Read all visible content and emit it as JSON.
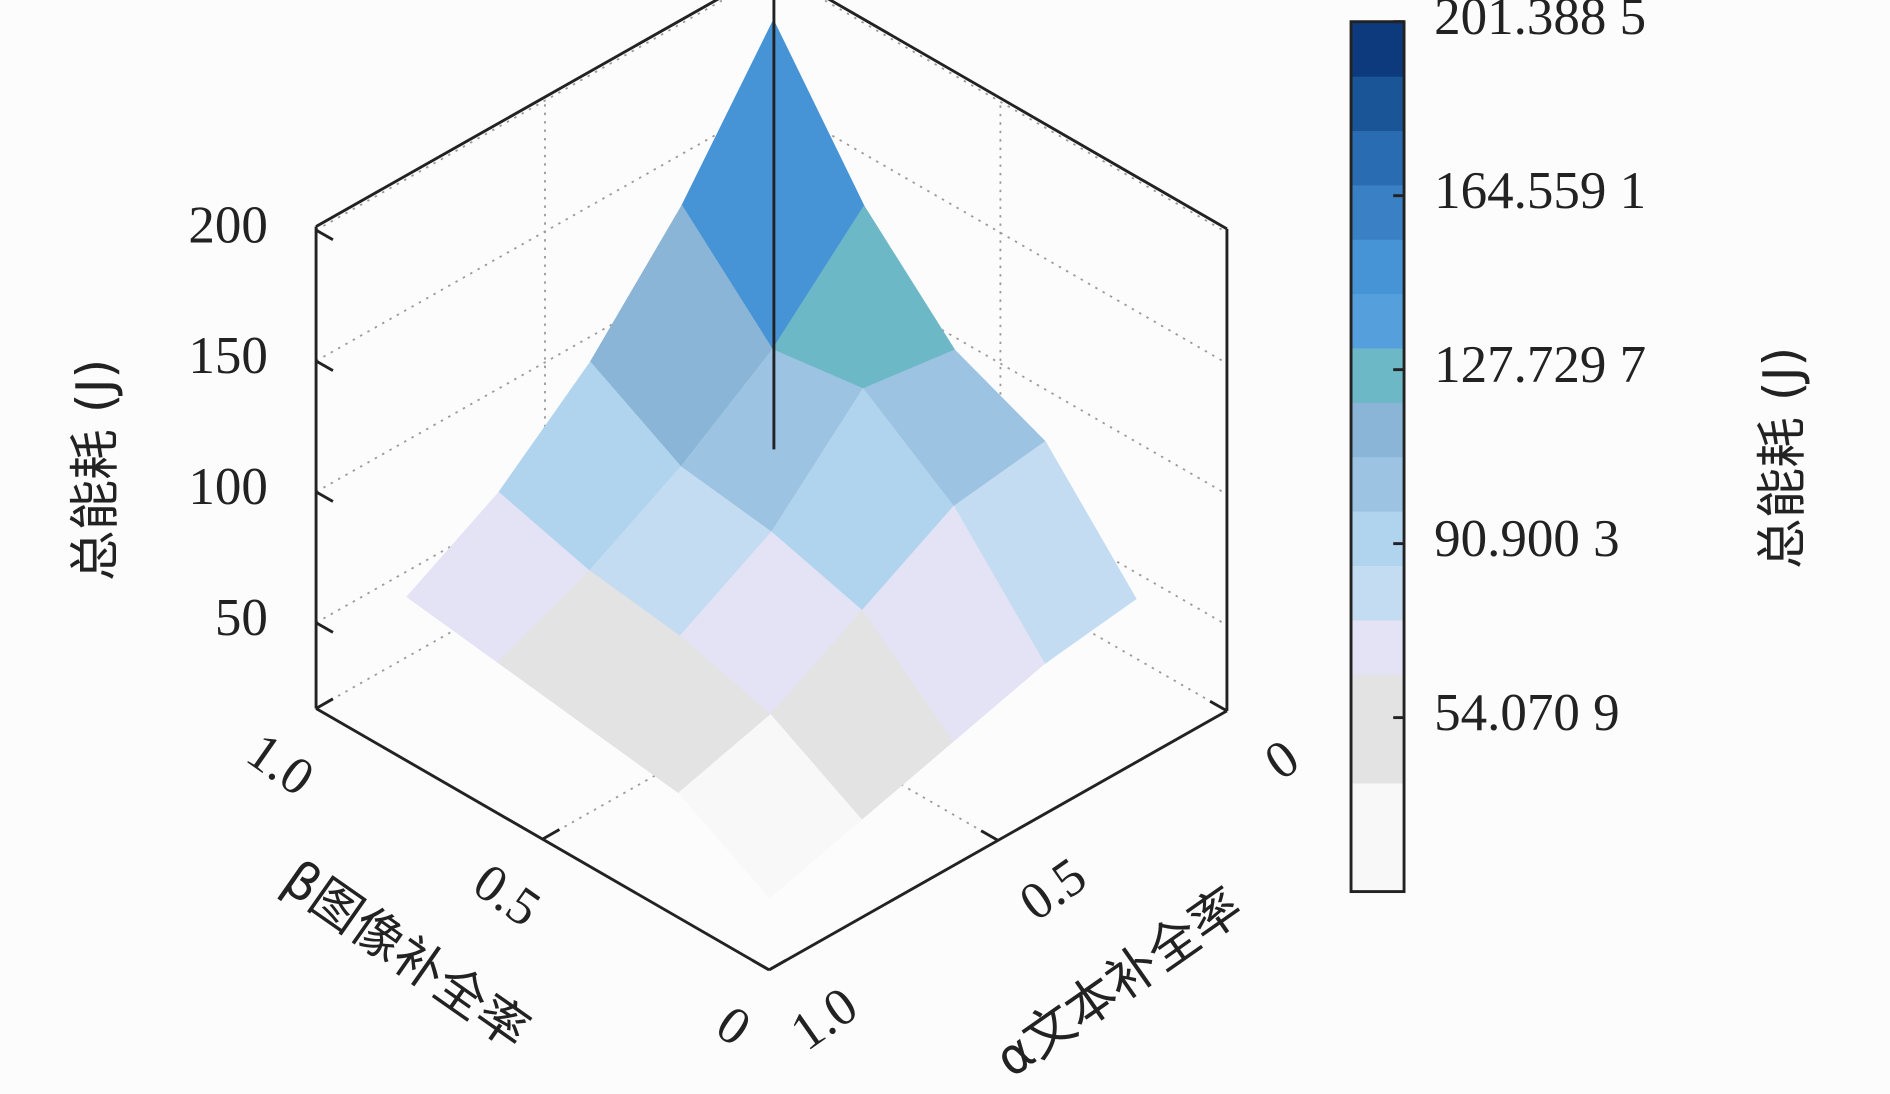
{
  "chart_data": {
    "type": "surface",
    "x_label": "α文本补全率",
    "y_label": "β图像补全率",
    "z_label": "总能耗 (J)",
    "colorbar_label": "总能耗 (J)",
    "x": [
      0.1,
      0.3,
      0.5,
      0.7,
      0.9
    ],
    "y": [
      0.1,
      0.3,
      0.5,
      0.7,
      0.9
    ],
    "z": [
      [
        60,
        55,
        45,
        35,
        25
      ],
      [
        100,
        95,
        75,
        55,
        45
      ],
      [
        115,
        120,
        85,
        65,
        50
      ],
      [
        150,
        115,
        90,
        70,
        55
      ],
      [
        201,
        150,
        110,
        80,
        60
      ]
    ],
    "xlim": [
      0,
      1
    ],
    "ylim": [
      0,
      1
    ],
    "zlim": [
      17.2415,
      201.3885
    ],
    "xticks": [
      0,
      0.5,
      {
        "value": 1,
        "label": "1.0"
      }
    ],
    "yticks": [
      0,
      0.5,
      {
        "value": 1,
        "label": "1.0"
      }
    ],
    "zticks": [
      50,
      100,
      150,
      200
    ],
    "clim": [
      17.2415,
      201.3885
    ],
    "cticks": [
      {
        "value": 54.0709,
        "label": "54.070 9"
      },
      {
        "value": 90.9003,
        "label": "90.900 3"
      },
      {
        "value": 127.7297,
        "label": "127.729 7"
      },
      {
        "value": 164.5591,
        "label": "164.559 1"
      },
      {
        "value": 201.3885,
        "label": "201.388 5"
      }
    ],
    "colormap": [
      "#f8f8f8",
      "#f8f8f8",
      "#e3e3e3",
      "#e3e3e3",
      "#e3e3f5",
      "#c4dcf1",
      "#b0d4ee",
      "#9cc3e2",
      "#8ab5d6",
      "#6db8c7",
      "#55a0dc",
      "#4694d6",
      "#3a80c4",
      "#2a6cb2",
      "#1a5598",
      "#0c3a7c"
    ],
    "grid": true
  }
}
